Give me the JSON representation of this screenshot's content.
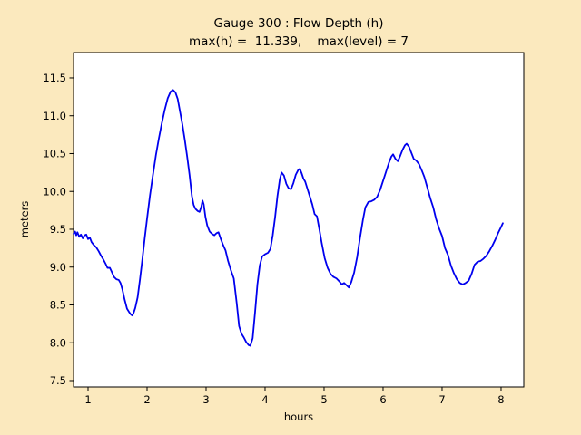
{
  "figure": {
    "background_color": "#fbe9be",
    "title_line1": "Gauge 300 : Flow Depth (h)",
    "title_line2": "max(h) =  11.339,    max(level) = 7"
  },
  "chart_data": {
    "type": "line",
    "title": "Gauge 300 : Flow Depth (h)",
    "subtitle": "max(h) =  11.339,    max(level) = 7",
    "xlabel": "hours",
    "ylabel": "meters",
    "x_tick_labels": [
      "1",
      "2",
      "3",
      "4",
      "5",
      "6",
      "7",
      "8"
    ],
    "x_ticks": [
      1,
      2,
      3,
      4,
      5,
      6,
      7,
      8
    ],
    "y_tick_labels": [
      "7.5",
      "8.0",
      "8.5",
      "9.0",
      "9.5",
      "10.0",
      "10.5",
      "11.0",
      "11.5"
    ],
    "y_ticks": [
      7.5,
      8.0,
      8.5,
      9.0,
      9.5,
      10.0,
      10.5,
      11.0,
      11.5
    ],
    "xlim": [
      0.754,
      8.385
    ],
    "ylim": [
      7.416,
      11.835
    ],
    "grid": false,
    "legend": "none",
    "line_color": "#0000ee",
    "plot_bg": "#ffffff",
    "max_h": 11.339,
    "max_level": 7,
    "series": [
      {
        "name": "h (flow depth)",
        "x": [
          0.754,
          0.78,
          0.8,
          0.82,
          0.85,
          0.88,
          0.91,
          0.94,
          0.97,
          1.0,
          1.03,
          1.06,
          1.1,
          1.14,
          1.18,
          1.22,
          1.26,
          1.3,
          1.33,
          1.37,
          1.4,
          1.44,
          1.48,
          1.52,
          1.55,
          1.58,
          1.62,
          1.66,
          1.7,
          1.73,
          1.75,
          1.77,
          1.8,
          1.84,
          1.88,
          1.92,
          1.96,
          2.0,
          2.05,
          2.1,
          2.15,
          2.2,
          2.25,
          2.3,
          2.35,
          2.4,
          2.44,
          2.48,
          2.52,
          2.56,
          2.6,
          2.64,
          2.68,
          2.72,
          2.76,
          2.79,
          2.82,
          2.86,
          2.89,
          2.92,
          2.94,
          2.96,
          2.99,
          3.02,
          3.06,
          3.1,
          3.14,
          3.18,
          3.21,
          3.25,
          3.29,
          3.33,
          3.37,
          3.42,
          3.47,
          3.52,
          3.56,
          3.6,
          3.64,
          3.68,
          3.72,
          3.75,
          3.79,
          3.83,
          3.87,
          3.91,
          3.95,
          4.0,
          4.05,
          4.09,
          4.13,
          4.17,
          4.21,
          4.25,
          4.28,
          4.32,
          4.36,
          4.4,
          4.44,
          4.48,
          4.52,
          4.56,
          4.59,
          4.62,
          4.65,
          4.68,
          4.72,
          4.76,
          4.8,
          4.84,
          4.88,
          4.92,
          4.96,
          5.01,
          5.06,
          5.11,
          5.16,
          5.21,
          5.26,
          5.3,
          5.34,
          5.38,
          5.42,
          5.46,
          5.51,
          5.56,
          5.61,
          5.66,
          5.7,
          5.75,
          5.8,
          5.85,
          5.9,
          5.95,
          6.0,
          6.05,
          6.1,
          6.14,
          6.17,
          6.21,
          6.25,
          6.29,
          6.33,
          6.37,
          6.4,
          6.44,
          6.48,
          6.52,
          6.56,
          6.61,
          6.66,
          6.7,
          6.75,
          6.8,
          6.85,
          6.9,
          6.95,
          7.0,
          7.05,
          7.1,
          7.15,
          7.2,
          7.25,
          7.3,
          7.35,
          7.4,
          7.45,
          7.5,
          7.55,
          7.6,
          7.65,
          7.7,
          7.75,
          7.8,
          7.85,
          7.9,
          7.95,
          8.0,
          8.03
        ],
        "y": [
          9.44,
          9.47,
          9.42,
          9.46,
          9.4,
          9.43,
          9.38,
          9.42,
          9.43,
          9.37,
          9.39,
          9.33,
          9.29,
          9.26,
          9.21,
          9.15,
          9.1,
          9.04,
          8.99,
          8.99,
          8.94,
          8.87,
          8.84,
          8.83,
          8.79,
          8.71,
          8.57,
          8.45,
          8.4,
          8.37,
          8.36,
          8.39,
          8.46,
          8.6,
          8.84,
          9.1,
          9.38,
          9.64,
          9.95,
          10.22,
          10.48,
          10.7,
          10.9,
          11.08,
          11.23,
          11.32,
          11.34,
          11.31,
          11.22,
          11.05,
          10.88,
          10.68,
          10.46,
          10.22,
          9.94,
          9.82,
          9.77,
          9.74,
          9.73,
          9.8,
          9.88,
          9.83,
          9.66,
          9.55,
          9.47,
          9.44,
          9.42,
          9.45,
          9.46,
          9.37,
          9.29,
          9.22,
          9.09,
          8.96,
          8.85,
          8.52,
          8.22,
          8.12,
          8.07,
          8.01,
          7.97,
          7.96,
          8.06,
          8.4,
          8.77,
          9.02,
          9.14,
          9.17,
          9.19,
          9.24,
          9.42,
          9.66,
          9.94,
          10.16,
          10.25,
          10.21,
          10.1,
          10.04,
          10.03,
          10.11,
          10.22,
          10.28,
          10.3,
          10.24,
          10.17,
          10.13,
          10.03,
          9.93,
          9.83,
          9.7,
          9.67,
          9.5,
          9.32,
          9.12,
          8.99,
          8.91,
          8.87,
          8.85,
          8.81,
          8.77,
          8.79,
          8.76,
          8.73,
          8.8,
          8.93,
          9.13,
          9.39,
          9.63,
          9.79,
          9.86,
          9.87,
          9.89,
          9.93,
          10.02,
          10.14,
          10.26,
          10.38,
          10.46,
          10.49,
          10.43,
          10.4,
          10.47,
          10.55,
          10.61,
          10.63,
          10.59,
          10.51,
          10.43,
          10.41,
          10.36,
          10.27,
          10.19,
          10.05,
          9.91,
          9.79,
          9.63,
          9.51,
          9.41,
          9.25,
          9.16,
          9.02,
          8.92,
          8.84,
          8.79,
          8.77,
          8.79,
          8.82,
          8.91,
          9.03,
          9.07,
          9.08,
          9.11,
          9.15,
          9.21,
          9.28,
          9.36,
          9.45,
          9.53,
          9.58
        ]
      }
    ]
  }
}
